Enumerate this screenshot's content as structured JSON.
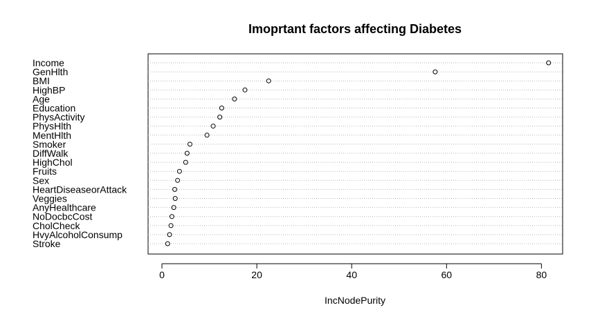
{
  "chart_data": {
    "type": "scatter",
    "title": "Imoprtant factors affecting Diabetes",
    "xlabel": "IncNodePurity",
    "ylabel": "",
    "xlim": [
      0,
      85
    ],
    "xticks": [
      0,
      20,
      40,
      60,
      80
    ],
    "grid": "dotted horizontal lines at each category",
    "legend": "none",
    "categories": [
      "Income",
      "GenHlth",
      "BMI",
      "HighBP",
      "Age",
      "Education",
      "PhysActivity",
      "PhysHlth",
      "MentHlth",
      "Smoker",
      "DiffWalk",
      "HighChol",
      "Fruits",
      "Sex",
      "HeartDiseaseorAttack",
      "Veggies",
      "AnyHealthcare",
      "NoDocbcCost",
      "CholCheck",
      "HvyAlcoholConsump",
      "Stroke"
    ],
    "values": [
      81.5,
      57.6,
      22.5,
      17.5,
      15.3,
      12.6,
      12.2,
      10.8,
      9.5,
      5.9,
      5.3,
      5.0,
      3.7,
      3.3,
      2.7,
      2.8,
      2.5,
      2.1,
      1.9,
      1.6,
      1.2
    ]
  }
}
